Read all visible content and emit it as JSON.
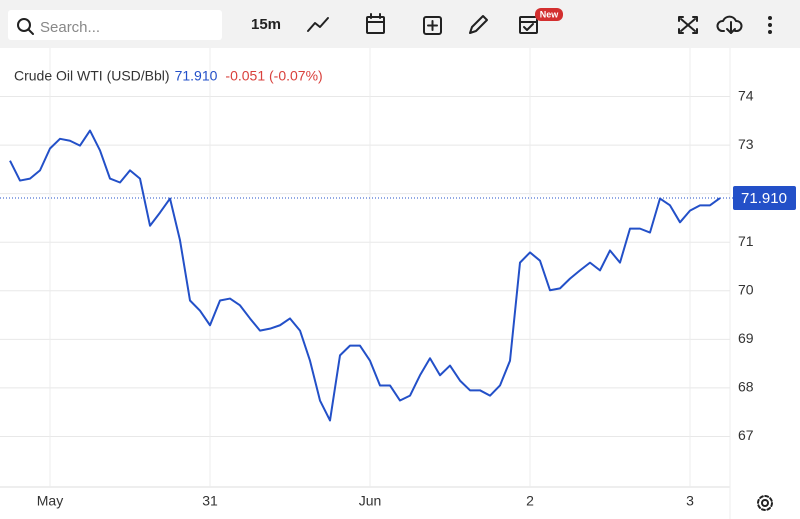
{
  "toolbar": {
    "search_placeholder": "Search...",
    "interval": "15m",
    "badge": "New"
  },
  "chart_data": {
    "type": "line",
    "title": "Crude Oil WTI (USD/Bbl)",
    "change": "-0.051 (-0.07%)",
    "last_value": {
      "value": 71.91,
      "label": "71.910"
    },
    "categories": [
      null,
      null,
      null,
      null,
      "May",
      null,
      null,
      null,
      null,
      null,
      null,
      null,
      null,
      null,
      null,
      null,
      null,
      null,
      null,
      null,
      "31",
      null,
      null,
      null,
      null,
      null,
      null,
      null,
      null,
      null,
      null,
      null,
      null,
      null,
      null,
      null,
      "Jun",
      null,
      null,
      null,
      null,
      null,
      null,
      null,
      null,
      null,
      null,
      null,
      null,
      null,
      null,
      null,
      "2",
      null,
      null,
      null,
      null,
      null,
      null,
      null,
      null,
      null,
      null,
      null,
      null,
      null,
      null,
      null,
      "3",
      null,
      null,
      null
    ],
    "series": [
      {
        "name": "Crude Oil WTI (USD/Bbl)",
        "color": "#2350c8",
        "values": [
          72.68,
          72.27,
          72.31,
          72.48,
          72.93,
          73.13,
          73.09,
          72.99,
          73.3,
          72.89,
          72.31,
          72.23,
          72.48,
          72.31,
          71.34,
          71.61,
          71.9,
          71.04,
          69.8,
          69.59,
          69.29,
          69.8,
          69.84,
          69.7,
          69.43,
          69.18,
          69.22,
          69.29,
          69.43,
          69.18,
          68.56,
          67.74,
          67.33,
          68.67,
          68.87,
          68.87,
          68.56,
          68.05,
          68.05,
          67.74,
          67.84,
          68.26,
          68.61,
          68.26,
          68.46,
          68.15,
          67.95,
          67.95,
          67.84,
          68.05,
          68.56,
          70.58,
          70.79,
          70.62,
          70.01,
          70.05,
          70.25,
          70.42,
          70.58,
          70.42,
          70.83,
          70.58,
          71.28,
          71.28,
          71.2,
          71.9,
          71.76,
          71.41,
          71.65,
          71.76,
          71.76,
          71.91
        ]
      }
    ],
    "ylim": [
      66,
      75
    ],
    "yticks": [
      67,
      68,
      69,
      70,
      71,
      72,
      73,
      74
    ],
    "grid": true
  }
}
